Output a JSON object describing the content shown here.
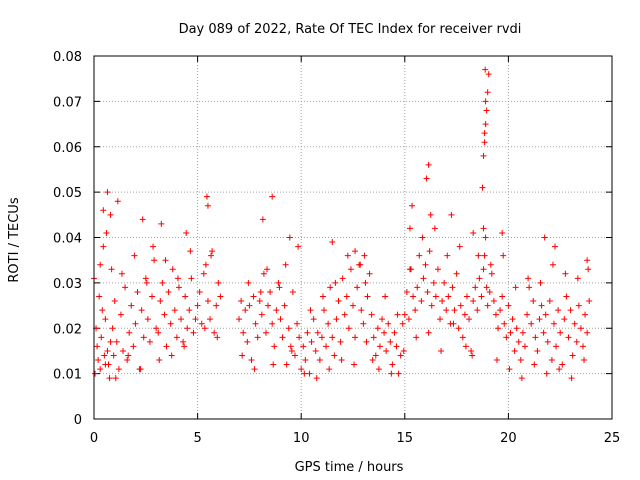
{
  "chart_data": {
    "type": "scatter",
    "title": "Day 089 of 2022, Rate Of TEC Index for receiver rvdi",
    "xlabel": "GPS time / hours",
    "ylabel": "ROTI / TECUs",
    "xlim": [
      0,
      25
    ],
    "ylim": [
      0,
      0.08
    ],
    "x_ticks": [
      "0",
      "5",
      "10",
      "15",
      "20",
      "25"
    ],
    "y_ticks": [
      "0",
      "0.01",
      "0.02",
      "0.03",
      "0.04",
      "0.05",
      "0.06",
      "0.07",
      "0.08"
    ],
    "grid": true,
    "marker": "+",
    "colors": {
      "points": "#ff0000"
    },
    "series": [
      {
        "x": [
          0.0,
          0.1,
          0.15,
          0.2,
          0.25,
          0.3,
          0.35,
          0.4,
          0.45,
          0.5,
          0.55,
          0.6,
          0.65,
          0.7,
          0.75,
          0.8,
          0.85,
          0.9,
          0.95,
          1.0,
          1.1,
          1.2,
          1.3,
          1.4,
          1.5,
          1.6,
          1.7,
          1.8,
          1.9,
          2.0,
          2.1,
          2.2,
          2.3,
          2.4,
          2.5,
          2.6,
          2.7,
          2.8,
          2.9,
          3.0,
          3.1,
          3.2,
          3.3,
          3.4,
          3.5,
          3.6,
          3.7,
          3.8,
          3.9,
          4.0,
          4.1,
          4.2,
          4.3,
          4.4,
          4.5,
          4.6,
          4.7,
          4.8,
          4.9,
          5.0,
          5.1,
          5.2,
          5.3,
          5.4,
          5.5,
          5.6,
          5.7,
          5.8,
          5.9,
          6.0,
          6.1,
          7.0,
          7.1,
          7.2,
          7.3,
          7.4,
          7.5,
          7.6,
          7.7,
          7.8,
          7.9,
          8.0,
          8.1,
          8.2,
          8.3,
          8.4,
          8.5,
          8.6,
          8.7,
          8.8,
          8.9,
          9.0,
          9.1,
          9.2,
          9.3,
          9.4,
          9.5,
          9.6,
          9.7,
          9.8,
          9.9,
          10.0,
          10.1,
          10.2,
          10.3,
          10.4,
          10.5,
          10.6,
          10.7,
          10.8,
          10.9,
          11.0,
          11.1,
          11.2,
          11.3,
          11.4,
          11.5,
          11.6,
          11.7,
          11.8,
          11.9,
          12.0,
          12.1,
          12.2,
          12.3,
          12.4,
          12.5,
          12.6,
          12.7,
          12.8,
          12.9,
          13.0,
          13.1,
          13.2,
          13.3,
          13.4,
          13.5,
          13.6,
          13.7,
          13.8,
          13.9,
          14.0,
          14.1,
          14.2,
          14.3,
          14.4,
          14.5,
          14.6,
          14.7,
          14.8,
          14.9,
          15.0,
          15.1,
          15.2,
          15.3,
          15.4,
          15.5,
          15.6,
          15.7,
          15.8,
          15.9,
          16.0,
          16.1,
          16.2,
          16.3,
          16.4,
          16.5,
          16.6,
          16.7,
          16.8,
          16.9,
          17.0,
          17.1,
          17.2,
          17.3,
          17.4,
          17.5,
          17.6,
          17.7,
          17.8,
          17.9,
          18.0,
          18.1,
          18.2,
          18.3,
          18.4,
          18.5,
          18.6,
          18.7,
          18.8,
          18.85,
          18.9,
          18.95,
          19.0,
          19.1,
          19.2,
          19.3,
          19.4,
          19.5,
          19.6,
          19.7,
          19.8,
          19.9,
          20.0,
          20.1,
          20.2,
          20.3,
          20.4,
          20.5,
          20.6,
          20.7,
          20.8,
          20.9,
          21.0,
          21.1,
          21.2,
          21.3,
          21.4,
          21.5,
          21.6,
          21.7,
          21.8,
          21.9,
          22.0,
          22.1,
          22.2,
          22.3,
          22.4,
          22.5,
          22.6,
          22.7,
          22.8,
          22.9,
          23.0,
          23.1,
          23.2,
          23.3,
          23.4,
          23.5,
          23.6,
          23.7,
          23.8,
          23.9,
          0.05,
          0.3,
          0.55,
          0.8,
          1.05,
          1.35,
          1.65,
          1.95,
          2.25,
          2.55,
          2.85,
          3.15,
          3.45,
          3.75,
          4.05,
          4.35,
          4.65,
          5.35,
          5.65,
          5.95,
          7.15,
          7.45,
          7.75,
          8.05,
          8.35,
          8.65,
          8.95,
          9.25,
          9.55,
          9.85,
          10.15,
          10.45,
          10.75,
          11.05,
          11.35,
          11.65,
          11.95,
          12.25,
          12.55,
          12.85,
          13.15,
          13.45,
          13.75,
          14.05,
          14.35,
          14.65,
          14.95,
          15.25,
          15.55,
          15.85,
          16.15,
          16.45,
          16.75,
          17.05,
          17.35,
          17.65,
          17.95,
          18.25,
          18.55,
          18.8,
          19.15,
          19.45,
          19.75,
          20.05,
          20.35,
          20.65,
          20.95,
          21.25,
          21.55,
          21.85,
          22.15,
          22.45,
          22.75,
          23.05,
          23.35,
          23.65,
          23.85,
          0.45,
          0.65,
          1.15,
          2.35,
          3.25,
          4.45,
          5.45,
          5.5,
          8.15,
          8.6,
          9.45,
          11.5,
          12.6,
          13.05,
          15.25,
          15.35,
          16.05,
          16.15,
          16.25,
          17.25,
          18.3,
          18.75,
          18.8,
          18.85,
          18.9,
          18.95,
          19.0,
          19.05,
          18.85,
          18.9,
          18.88,
          19.7,
          21.75,
          22.25,
          23.8
        ],
        "y": [
          0.031,
          0.02,
          0.016,
          0.013,
          0.027,
          0.011,
          0.018,
          0.024,
          0.038,
          0.014,
          0.022,
          0.041,
          0.015,
          0.012,
          0.009,
          0.017,
          0.033,
          0.02,
          0.014,
          0.026,
          0.017,
          0.011,
          0.023,
          0.015,
          0.029,
          0.013,
          0.019,
          0.025,
          0.016,
          0.021,
          0.028,
          0.011,
          0.024,
          0.018,
          0.031,
          0.022,
          0.017,
          0.027,
          0.035,
          0.02,
          0.019,
          0.026,
          0.03,
          0.023,
          0.016,
          0.028,
          0.021,
          0.033,
          0.024,
          0.018,
          0.029,
          0.022,
          0.017,
          0.027,
          0.02,
          0.024,
          0.031,
          0.019,
          0.022,
          0.025,
          0.028,
          0.021,
          0.032,
          0.034,
          0.026,
          0.022,
          0.037,
          0.019,
          0.025,
          0.03,
          0.027,
          0.022,
          0.026,
          0.019,
          0.024,
          0.017,
          0.025,
          0.013,
          0.027,
          0.021,
          0.018,
          0.026,
          0.023,
          0.032,
          0.019,
          0.025,
          0.028,
          0.021,
          0.016,
          0.024,
          0.03,
          0.022,
          0.018,
          0.025,
          0.012,
          0.02,
          0.016,
          0.028,
          0.014,
          0.021,
          0.018,
          0.011,
          0.016,
          0.013,
          0.019,
          0.01,
          0.017,
          0.022,
          0.015,
          0.019,
          0.013,
          0.018,
          0.024,
          0.016,
          0.021,
          0.029,
          0.018,
          0.014,
          0.022,
          0.026,
          0.017,
          0.031,
          0.023,
          0.027,
          0.02,
          0.033,
          0.025,
          0.018,
          0.029,
          0.034,
          0.024,
          0.021,
          0.03,
          0.027,
          0.032,
          0.023,
          0.018,
          0.014,
          0.02,
          0.016,
          0.022,
          0.019,
          0.015,
          0.021,
          0.017,
          0.012,
          0.019,
          0.016,
          0.01,
          0.014,
          0.021,
          0.023,
          0.028,
          0.022,
          0.033,
          0.027,
          0.024,
          0.029,
          0.036,
          0.026,
          0.031,
          0.034,
          0.028,
          0.037,
          0.025,
          0.03,
          0.027,
          0.033,
          0.022,
          0.026,
          0.03,
          0.024,
          0.027,
          0.021,
          0.029,
          0.024,
          0.032,
          0.02,
          0.025,
          0.018,
          0.023,
          0.027,
          0.022,
          0.015,
          0.026,
          0.029,
          0.024,
          0.031,
          0.027,
          0.033,
          0.036,
          0.04,
          0.029,
          0.025,
          0.028,
          0.032,
          0.026,
          0.023,
          0.02,
          0.024,
          0.027,
          0.021,
          0.018,
          0.025,
          0.019,
          0.022,
          0.015,
          0.02,
          0.017,
          0.013,
          0.019,
          0.016,
          0.023,
          0.029,
          0.021,
          0.026,
          0.018,
          0.015,
          0.022,
          0.025,
          0.019,
          0.023,
          0.017,
          0.026,
          0.013,
          0.021,
          0.016,
          0.024,
          0.019,
          0.012,
          0.022,
          0.027,
          0.018,
          0.024,
          0.014,
          0.021,
          0.017,
          0.025,
          0.02,
          0.016,
          0.023,
          0.019,
          0.026,
          0.01,
          0.034,
          0.012,
          0.045,
          0.009,
          0.032,
          0.014,
          0.036,
          0.011,
          0.03,
          0.038,
          0.013,
          0.035,
          0.014,
          0.031,
          0.016,
          0.037,
          0.02,
          0.036,
          0.018,
          0.014,
          0.03,
          0.011,
          0.028,
          0.033,
          0.012,
          0.029,
          0.034,
          0.015,
          0.038,
          0.01,
          0.024,
          0.009,
          0.027,
          0.011,
          0.03,
          0.013,
          0.036,
          0.012,
          0.034,
          0.017,
          0.013,
          0.011,
          0.027,
          0.01,
          0.023,
          0.015,
          0.033,
          0.018,
          0.04,
          0.019,
          0.042,
          0.015,
          0.036,
          0.021,
          0.038,
          0.016,
          0.014,
          0.036,
          0.042,
          0.034,
          0.013,
          0.036,
          0.011,
          0.029,
          0.009,
          0.031,
          0.012,
          0.03,
          0.01,
          0.034,
          0.011,
          0.032,
          0.009,
          0.031,
          0.013,
          0.033,
          0.046,
          0.05,
          0.048,
          0.044,
          0.043,
          0.041,
          0.049,
          0.047,
          0.044,
          0.049,
          0.04,
          0.039,
          0.037,
          0.036,
          0.042,
          0.047,
          0.053,
          0.056,
          0.045,
          0.045,
          0.041,
          0.051,
          0.058,
          0.061,
          0.065,
          0.068,
          0.072,
          0.076,
          0.063,
          0.07,
          0.077,
          0.041,
          0.04,
          0.038,
          0.035
        ]
      }
    ]
  }
}
